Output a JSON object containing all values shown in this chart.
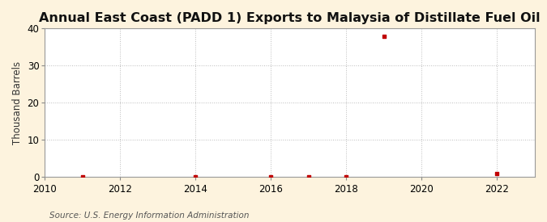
{
  "title": "Annual East Coast (PADD 1) Exports to Malaysia of Distillate Fuel Oil",
  "ylabel": "Thousand Barrels",
  "source": "Source: U.S. Energy Information Administration",
  "background_color": "#fdf3de",
  "plot_background_color": "#ffffff",
  "data_years": [
    2011,
    2014,
    2016,
    2017,
    2018,
    2019,
    2022
  ],
  "data_values": [
    0.05,
    0.05,
    0.05,
    0.1,
    0.05,
    38.0,
    1.0
  ],
  "marker_color": "#c00000",
  "marker_size": 3.5,
  "xlim": [
    2010,
    2023
  ],
  "ylim": [
    0,
    40
  ],
  "xticks": [
    2010,
    2012,
    2014,
    2016,
    2018,
    2020,
    2022
  ],
  "yticks": [
    0,
    10,
    20,
    30,
    40
  ],
  "grid_color": "#bbbbbb",
  "grid_linestyle": ":",
  "title_fontsize": 11.5,
  "label_fontsize": 8.5,
  "tick_fontsize": 8.5,
  "source_fontsize": 7.5
}
